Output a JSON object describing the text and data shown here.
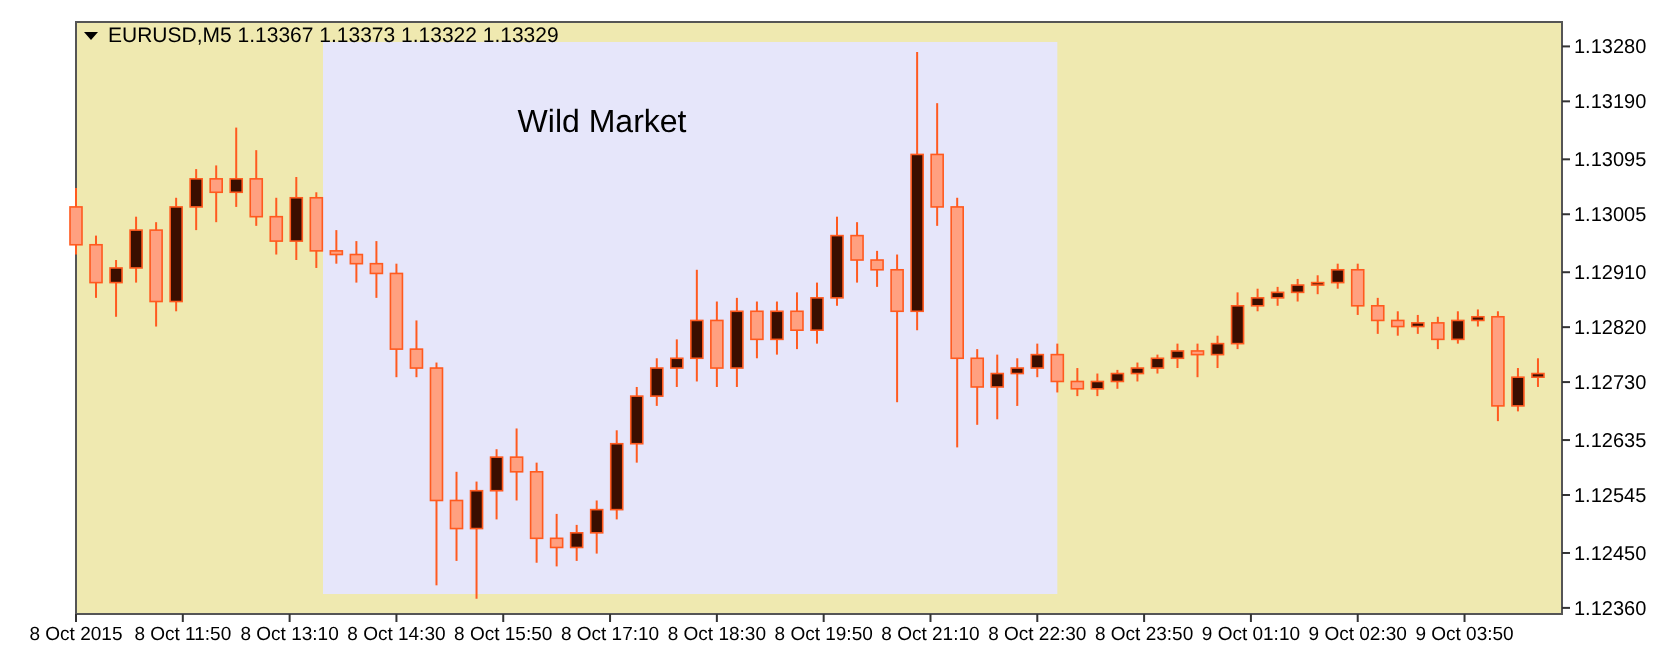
{
  "chart_data": {
    "type": "candlestick",
    "title": "EURUSD,M5  1.13367 1.13373 1.13322 1.13329",
    "color": "#ff5a1f",
    "xlim": [
      "2015-10-08T10:30",
      "2015-10-09T05:03"
    ],
    "xticks": [
      {
        "value": "2015-10-08T10:30",
        "label": "8 Oct 2015"
      },
      {
        "value": "2015-10-08T11:50",
        "label": "8 Oct 11:50"
      },
      {
        "value": "2015-10-08T13:10",
        "label": "8 Oct 13:10"
      },
      {
        "value": "2015-10-08T14:30",
        "label": "8 Oct 14:30"
      },
      {
        "value": "2015-10-08T15:50",
        "label": "8 Oct 15:50"
      },
      {
        "value": "2015-10-08T17:10",
        "label": "8 Oct 17:10"
      },
      {
        "value": "2015-10-08T18:30",
        "label": "8 Oct 18:30"
      },
      {
        "value": "2015-10-08T19:50",
        "label": "8 Oct 19:50"
      },
      {
        "value": "2015-10-08T21:10",
        "label": "8 Oct 21:10"
      },
      {
        "value": "2015-10-08T22:30",
        "label": "8 Oct 22:30"
      },
      {
        "value": "2015-10-08T23:50",
        "label": "8 Oct 23:50"
      },
      {
        "value": "2015-10-09T01:10",
        "label": "9 Oct 01:10"
      },
      {
        "value": "2015-10-09T02:30",
        "label": "9 Oct 02:30"
      },
      {
        "value": "2015-10-09T03:50",
        "label": "9 Oct 03:50"
      }
    ],
    "ylim": [
      1.1235,
      1.1332
    ],
    "yticks": [
      {
        "value": 1.1328,
        "label": "1.13280"
      },
      {
        "value": 1.1319,
        "label": "1.13190"
      },
      1.13095,
      1.13005,
      {
        "value": 1.1291,
        "label": "1.12910"
      },
      {
        "value": 1.1282,
        "label": "1.12820"
      },
      {
        "value": 1.1273,
        "label": "1.12730"
      },
      1.12635,
      1.12545,
      {
        "value": 1.1245,
        "label": "1.12450"
      },
      {
        "value": 1.1236,
        "label": "1.12360"
      }
    ],
    "bands": [
      {
        "axis": "x",
        "from": "2015-10-08T13:35",
        "to": "2015-10-08T22:45",
        "label": "Wild Market",
        "color": "#e6e6fa"
      }
    ],
    "x": [
      "2015-10-08T10:30",
      "2015-10-08T10:45",
      "2015-10-08T11:00",
      "2015-10-08T11:15",
      "2015-10-08T11:30",
      "2015-10-08T11:45",
      "2015-10-08T12:00",
      "2015-10-08T12:15",
      "2015-10-08T12:30",
      "2015-10-08T12:45",
      "2015-10-08T13:00",
      "2015-10-08T13:15",
      "2015-10-08T13:30",
      "2015-10-08T13:45",
      "2015-10-08T14:00",
      "2015-10-08T14:15",
      "2015-10-08T14:30",
      "2015-10-08T14:45",
      "2015-10-08T15:00",
      "2015-10-08T15:15",
      "2015-10-08T15:30",
      "2015-10-08T15:45",
      "2015-10-08T16:00",
      "2015-10-08T16:15",
      "2015-10-08T16:30",
      "2015-10-08T16:45",
      "2015-10-08T17:00",
      "2015-10-08T17:15",
      "2015-10-08T17:30",
      "2015-10-08T17:45",
      "2015-10-08T18:00",
      "2015-10-08T18:15",
      "2015-10-08T18:30",
      "2015-10-08T18:45",
      "2015-10-08T19:00",
      "2015-10-08T19:15",
      "2015-10-08T19:30",
      "2015-10-08T19:45",
      "2015-10-08T20:00",
      "2015-10-08T20:15",
      "2015-10-08T20:30",
      "2015-10-08T20:45",
      "2015-10-08T21:00",
      "2015-10-08T21:15",
      "2015-10-08T21:30",
      "2015-10-08T21:45",
      "2015-10-08T22:00",
      "2015-10-08T22:15",
      "2015-10-08T22:30",
      "2015-10-08T22:45",
      "2015-10-08T23:00",
      "2015-10-08T23:15",
      "2015-10-08T23:30",
      "2015-10-08T23:45",
      "2015-10-09T00:00",
      "2015-10-09T00:15",
      "2015-10-09T00:30",
      "2015-10-09T00:45",
      "2015-10-09T01:00",
      "2015-10-09T01:15",
      "2015-10-09T01:30",
      "2015-10-09T01:45",
      "2015-10-09T02:00",
      "2015-10-09T02:15",
      "2015-10-09T02:30",
      "2015-10-09T02:45",
      "2015-10-09T03:00",
      "2015-10-09T03:15",
      "2015-10-09T03:30",
      "2015-10-09T03:45",
      "2015-10-09T04:00",
      "2015-10-09T04:15",
      "2015-10-09T04:30",
      "2015-10-09T04:45"
    ],
    "ohlc": [
      [
        1.13017,
        1.13048,
        1.12939,
        1.12955
      ],
      [
        1.12955,
        1.1297,
        1.12868,
        1.12893
      ],
      [
        1.12893,
        1.1293,
        1.12837,
        1.12917
      ],
      [
        1.12917,
        1.13001,
        1.12893,
        1.12979
      ],
      [
        1.12979,
        1.12992,
        1.12821,
        1.12862
      ],
      [
        1.12862,
        1.13032,
        1.12846,
        1.13017
      ],
      [
        1.13017,
        1.13079,
        1.12979,
        1.13063
      ],
      [
        1.13063,
        1.13085,
        1.12992,
        1.13041
      ],
      [
        1.13041,
        1.13147,
        1.13017,
        1.13063
      ],
      [
        1.13063,
        1.1311,
        1.12986,
        1.13001
      ],
      [
        1.13001,
        1.13032,
        1.12939,
        1.12961
      ],
      [
        1.12961,
        1.13066,
        1.1293,
        1.13032
      ],
      [
        1.13032,
        1.13041,
        1.12917,
        1.12945
      ],
      [
        1.12945,
        1.12979,
        1.12924,
        1.12939
      ],
      [
        1.12939,
        1.12961,
        1.12893,
        1.12924
      ],
      [
        1.12924,
        1.12961,
        1.12868,
        1.12908
      ],
      [
        1.12908,
        1.12924,
        1.12738,
        1.12784
      ],
      [
        1.12784,
        1.12831,
        1.12738,
        1.12753
      ],
      [
        1.12753,
        1.12762,
        1.12397,
        1.12536
      ],
      [
        1.12536,
        1.12583,
        1.12437,
        1.1249
      ],
      [
        1.1249,
        1.12567,
        1.12375,
        1.12552
      ],
      [
        1.12552,
        1.1262,
        1.12505,
        1.12607
      ],
      [
        1.12607,
        1.12654,
        1.12536,
        1.12583
      ],
      [
        1.12583,
        1.12598,
        1.12434,
        1.12474
      ],
      [
        1.12474,
        1.12514,
        1.12428,
        1.12459
      ],
      [
        1.12459,
        1.12496,
        1.12437,
        1.12483
      ],
      [
        1.12483,
        1.12536,
        1.12449,
        1.12521
      ],
      [
        1.12521,
        1.12651,
        1.12505,
        1.12629
      ],
      [
        1.12629,
        1.12722,
        1.12598,
        1.12707
      ],
      [
        1.12707,
        1.12769,
        1.12691,
        1.12753
      ],
      [
        1.12753,
        1.128,
        1.12722,
        1.12769
      ],
      [
        1.12769,
        1.12914,
        1.12731,
        1.12831
      ],
      [
        1.12831,
        1.12862,
        1.12722,
        1.12753
      ],
      [
        1.12753,
        1.12868,
        1.12722,
        1.12846
      ],
      [
        1.12846,
        1.12862,
        1.12769,
        1.128
      ],
      [
        1.128,
        1.12862,
        1.12775,
        1.12846
      ],
      [
        1.12846,
        1.12877,
        1.12784,
        1.12815
      ],
      [
        1.12815,
        1.12893,
        1.12793,
        1.12868
      ],
      [
        1.12868,
        1.13001,
        1.12855,
        1.1297
      ],
      [
        1.1297,
        1.12992,
        1.12893,
        1.1293
      ],
      [
        1.1293,
        1.12945,
        1.12886,
        1.12914
      ],
      [
        1.12914,
        1.12939,
        1.12697,
        1.12846
      ],
      [
        1.12846,
        1.13271,
        1.12815,
        1.13103
      ],
      [
        1.13103,
        1.13187,
        1.12986,
        1.13017
      ],
      [
        1.13017,
        1.13032,
        1.12623,
        1.12769
      ],
      [
        1.12769,
        1.12784,
        1.1266,
        1.12722
      ],
      [
        1.12722,
        1.12775,
        1.12669,
        1.12744
      ],
      [
        1.12744,
        1.12769,
        1.12691,
        1.12753
      ],
      [
        1.12753,
        1.12793,
        1.12738,
        1.12775
      ],
      [
        1.12775,
        1.12793,
        1.12713,
        1.12731
      ],
      [
        1.12731,
        1.12753,
        1.12707,
        1.12719
      ],
      [
        1.12719,
        1.12744,
        1.12707,
        1.12731
      ],
      [
        1.12731,
        1.1275,
        1.12719,
        1.12744
      ],
      [
        1.12744,
        1.12762,
        1.12731,
        1.12753
      ],
      [
        1.12753,
        1.12775,
        1.12744,
        1.12769
      ],
      [
        1.12769,
        1.12793,
        1.12753,
        1.12781
      ],
      [
        1.12781,
        1.12793,
        1.12738,
        1.12775
      ],
      [
        1.12775,
        1.12806,
        1.12753,
        1.12793
      ],
      [
        1.12793,
        1.12877,
        1.12784,
        1.12855
      ],
      [
        1.12855,
        1.12883,
        1.12846,
        1.12868
      ],
      [
        1.12868,
        1.12886,
        1.12855,
        1.12877
      ],
      [
        1.12877,
        1.12899,
        1.12862,
        1.12889
      ],
      [
        1.12889,
        1.12905,
        1.12874,
        1.12893
      ],
      [
        1.12893,
        1.12924,
        1.12883,
        1.12914
      ],
      [
        1.12914,
        1.12924,
        1.1284,
        1.12855
      ],
      [
        1.12855,
        1.12868,
        1.12809,
        1.12831
      ],
      [
        1.12831,
        1.12846,
        1.12806,
        1.12821
      ],
      [
        1.12821,
        1.1284,
        1.12809,
        1.12827
      ],
      [
        1.12827,
        1.12837,
        1.12784,
        1.128
      ],
      [
        1.128,
        1.12846,
        1.12793,
        1.12831
      ],
      [
        1.12831,
        1.12849,
        1.12821,
        1.12837
      ],
      [
        1.12837,
        1.12846,
        1.12666,
        1.12691
      ],
      [
        1.12691,
        1.12753,
        1.12682,
        1.12738
      ],
      [
        1.12738,
        1.12769,
        1.12722,
        1.12744
      ]
    ]
  }
}
